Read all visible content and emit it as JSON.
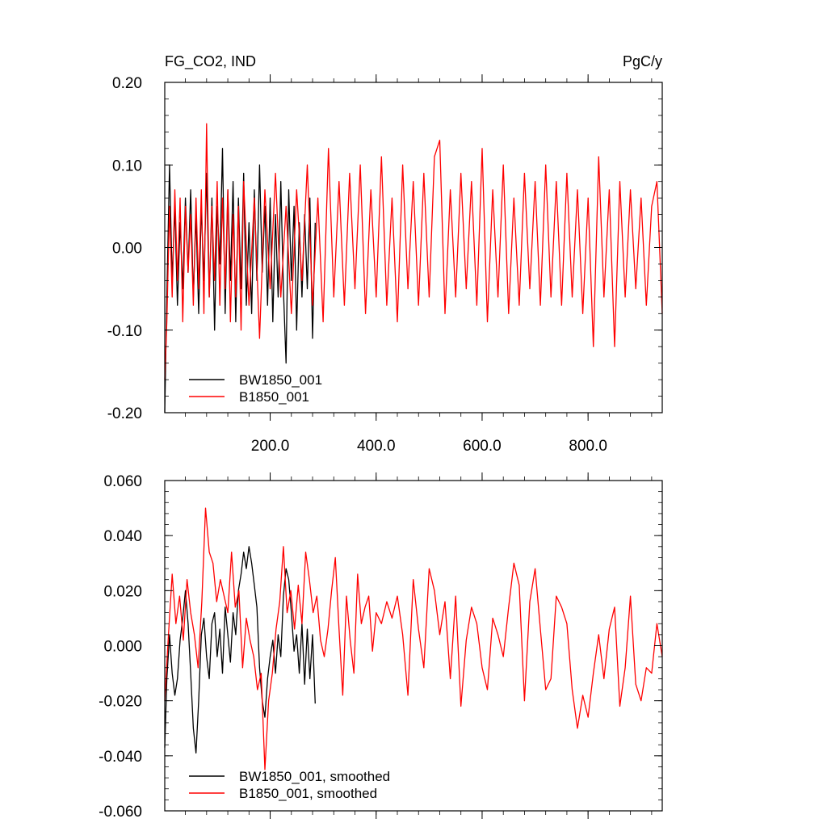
{
  "chart_data": [
    {
      "type": "line",
      "title_left": "FG_CO2, IND",
      "title_right": "PgC/y",
      "xlim": [
        1,
        940
      ],
      "ylim": [
        -0.2,
        0.2
      ],
      "x_ticks": [
        200,
        400,
        600,
        800
      ],
      "x_tick_labels": [
        "200.0",
        "400.0",
        "600.0",
        "800.0"
      ],
      "y_ticks": [
        -0.2,
        -0.1,
        0.0,
        0.1,
        0.2
      ],
      "y_tick_labels": [
        "-0.20",
        "-0.10",
        "0.00",
        "0.10",
        "0.20"
      ],
      "legend_placement": "bottom-left",
      "series": [
        {
          "name": "BW1850_001",
          "color": "#000000",
          "x": [
            1,
            5,
            10,
            15,
            20,
            25,
            30,
            35,
            40,
            45,
            50,
            55,
            60,
            65,
            70,
            75,
            80,
            85,
            90,
            95,
            100,
            105,
            110,
            115,
            120,
            125,
            130,
            135,
            140,
            145,
            150,
            155,
            160,
            165,
            170,
            175,
            180,
            185,
            190,
            195,
            200,
            205,
            210,
            215,
            220,
            225,
            230,
            235,
            240,
            245,
            250,
            255,
            260,
            265,
            270,
            275,
            280,
            285
          ],
          "values": [
            -0.2,
            -0.06,
            0.1,
            -0.04,
            0.05,
            -0.07,
            0.03,
            -0.05,
            0.06,
            -0.03,
            0.07,
            -0.06,
            0.04,
            -0.08,
            0.05,
            -0.04,
            0.09,
            -0.06,
            0.06,
            -0.1,
            0.05,
            -0.02,
            0.12,
            -0.08,
            0.07,
            -0.04,
            0.08,
            -0.09,
            0.06,
            -0.05,
            0.09,
            -0.07,
            0.03,
            -0.08,
            0.07,
            -0.04,
            0.1,
            -0.03,
            0.05,
            -0.07,
            0.06,
            -0.09,
            0.04,
            -0.06,
            0.08,
            -0.05,
            -0.14,
            0.07,
            -0.04,
            0.05,
            -0.1,
            0.03,
            -0.06,
            0.04,
            -0.05,
            0.06,
            -0.11,
            0.03
          ]
        },
        {
          "name": "B1850_001",
          "color": "#ff0000",
          "x": [
            1,
            5,
            10,
            15,
            20,
            25,
            30,
            35,
            40,
            45,
            50,
            55,
            60,
            65,
            70,
            75,
            80,
            85,
            90,
            95,
            100,
            105,
            110,
            115,
            120,
            125,
            130,
            135,
            140,
            145,
            150,
            160,
            170,
            180,
            190,
            200,
            210,
            220,
            230,
            240,
            250,
            260,
            270,
            280,
            290,
            300,
            310,
            320,
            330,
            340,
            350,
            360,
            370,
            380,
            390,
            400,
            410,
            420,
            430,
            440,
            450,
            460,
            470,
            480,
            490,
            500,
            510,
            520,
            530,
            540,
            550,
            560,
            570,
            580,
            590,
            600,
            610,
            620,
            630,
            640,
            650,
            660,
            670,
            680,
            690,
            700,
            710,
            720,
            730,
            740,
            750,
            760,
            770,
            780,
            790,
            800,
            810,
            820,
            830,
            840,
            850,
            860,
            870,
            880,
            890,
            900,
            910,
            920,
            930,
            940
          ],
          "values": [
            -0.16,
            -0.09,
            0.05,
            -0.06,
            0.07,
            -0.04,
            0.06,
            -0.09,
            0.05,
            -0.03,
            0.04,
            -0.07,
            0.06,
            -0.05,
            0.07,
            -0.08,
            0.15,
            -0.06,
            0.05,
            -0.04,
            0.08,
            -0.07,
            0.06,
            -0.05,
            0.07,
            -0.09,
            0.04,
            -0.06,
            0.05,
            -0.1,
            0.08,
            -0.07,
            0.06,
            -0.11,
            0.07,
            -0.05,
            0.09,
            -0.06,
            0.05,
            -0.08,
            0.07,
            -0.04,
            0.1,
            -0.07,
            0.06,
            -0.09,
            0.12,
            -0.06,
            0.08,
            -0.07,
            0.09,
            -0.05,
            0.1,
            -0.08,
            0.07,
            -0.06,
            0.11,
            -0.07,
            0.06,
            -0.09,
            0.1,
            -0.05,
            0.08,
            -0.07,
            0.09,
            -0.06,
            0.11,
            0.13,
            -0.08,
            0.07,
            -0.06,
            0.09,
            -0.05,
            0.08,
            -0.07,
            0.12,
            -0.09,
            0.07,
            -0.06,
            0.1,
            -0.08,
            0.06,
            -0.07,
            0.09,
            -0.05,
            0.08,
            -0.07,
            0.1,
            -0.06,
            0.08,
            -0.07,
            0.09,
            -0.06,
            0.07,
            -0.08,
            0.06,
            -0.12,
            0.11,
            -0.06,
            0.07,
            -0.12,
            0.08,
            -0.06,
            0.07,
            -0.05,
            0.06,
            -0.07,
            0.05,
            0.08,
            -0.08
          ]
        }
      ]
    },
    {
      "type": "line",
      "xlim": [
        1,
        940
      ],
      "ylim": [
        -0.06,
        0.06
      ],
      "x_ticks": [
        200,
        400,
        600,
        800
      ],
      "y_ticks": [
        -0.06,
        -0.04,
        -0.02,
        0.0,
        0.02,
        0.04,
        0.06
      ],
      "y_tick_labels": [
        "-0.060",
        "-0.040",
        "-0.020",
        "0.000",
        "0.020",
        "0.040",
        "0.060"
      ],
      "legend_placement": "bottom-left",
      "series": [
        {
          "name": "BW1850_001, smoothed",
          "color": "#000000",
          "x": [
            1,
            5,
            10,
            15,
            20,
            25,
            30,
            35,
            40,
            45,
            50,
            55,
            60,
            65,
            70,
            75,
            80,
            85,
            90,
            95,
            100,
            105,
            110,
            115,
            120,
            125,
            130,
            135,
            140,
            145,
            150,
            155,
            160,
            165,
            170,
            175,
            180,
            185,
            190,
            195,
            200,
            205,
            210,
            215,
            220,
            225,
            230,
            235,
            240,
            245,
            250,
            255,
            260,
            265,
            270,
            275,
            280,
            285
          ],
          "values": [
            -0.037,
            -0.012,
            0.004,
            -0.01,
            -0.018,
            -0.012,
            0.002,
            0.01,
            0.02,
            0.008,
            -0.01,
            -0.03,
            -0.039,
            -0.02,
            0.004,
            0.01,
            -0.004,
            -0.012,
            0.008,
            0.012,
            -0.004,
            0.006,
            -0.01,
            0.014,
            0.004,
            -0.006,
            0.012,
            0.004,
            0.02,
            0.026,
            0.034,
            0.028,
            0.036,
            0.03,
            0.022,
            0.014,
            -0.008,
            -0.02,
            -0.026,
            -0.012,
            -0.004,
            0.002,
            -0.01,
            0.004,
            -0.004,
            0.018,
            0.028,
            0.024,
            0.012,
            -0.002,
            0.004,
            -0.01,
            0.008,
            -0.014,
            0.006,
            -0.012,
            0.004,
            -0.021
          ]
        },
        {
          "name": "B1850_001, smoothed",
          "color": "#ff0000",
          "x": [
            1,
            8,
            15,
            22,
            29,
            36,
            43,
            50,
            57,
            64,
            71,
            78,
            85,
            92,
            99,
            106,
            113,
            120,
            127,
            134,
            141,
            148,
            155,
            162,
            169,
            176,
            183,
            190,
            197,
            204,
            211,
            218,
            225,
            232,
            239,
            246,
            253,
            260,
            267,
            274,
            281,
            288,
            295,
            302,
            309,
            316,
            323,
            330,
            337,
            344,
            351,
            358,
            365,
            372,
            379,
            386,
            393,
            400,
            410,
            420,
            430,
            440,
            450,
            460,
            470,
            480,
            490,
            500,
            510,
            520,
            530,
            540,
            550,
            560,
            570,
            580,
            590,
            600,
            610,
            620,
            630,
            640,
            650,
            660,
            670,
            680,
            690,
            700,
            710,
            720,
            730,
            740,
            750,
            760,
            770,
            780,
            790,
            800,
            810,
            820,
            830,
            840,
            850,
            860,
            870,
            880,
            890,
            900,
            910,
            920,
            930,
            940
          ],
          "values": [
            -0.02,
            0.004,
            0.026,
            0.008,
            0.018,
            0.002,
            0.024,
            0.012,
            0.004,
            -0.008,
            0.016,
            0.05,
            0.034,
            0.03,
            0.016,
            0.024,
            0.018,
            0.012,
            0.034,
            0.014,
            0.02,
            -0.008,
            0.01,
            0.002,
            -0.004,
            -0.016,
            -0.01,
            -0.045,
            -0.02,
            -0.01,
            0.006,
            0.016,
            0.036,
            0.012,
            0.02,
            0.006,
            0.022,
            0.008,
            0.034,
            0.024,
            0.012,
            0.018,
            0.002,
            -0.004,
            0.006,
            0.02,
            0.032,
            0.006,
            -0.018,
            0.018,
            0.002,
            -0.01,
            0.026,
            0.008,
            0.014,
            0.018,
            -0.002,
            0.012,
            0.008,
            0.016,
            0.01,
            0.018,
            0.004,
            -0.018,
            0.024,
            0.006,
            -0.008,
            0.028,
            0.02,
            0.004,
            0.016,
            -0.012,
            0.018,
            -0.022,
            0.002,
            0.014,
            0.008,
            -0.008,
            -0.016,
            0.01,
            0.004,
            -0.004,
            0.014,
            0.03,
            0.022,
            -0.02,
            0.016,
            0.028,
            0.006,
            -0.016,
            -0.012,
            0.018,
            0.014,
            0.008,
            -0.016,
            -0.03,
            -0.018,
            -0.026,
            -0.01,
            0.004,
            -0.012,
            0.006,
            0.014,
            -0.022,
            -0.008,
            0.018,
            -0.014,
            -0.02,
            -0.008,
            -0.01,
            0.008,
            -0.004
          ]
        }
      ]
    }
  ]
}
